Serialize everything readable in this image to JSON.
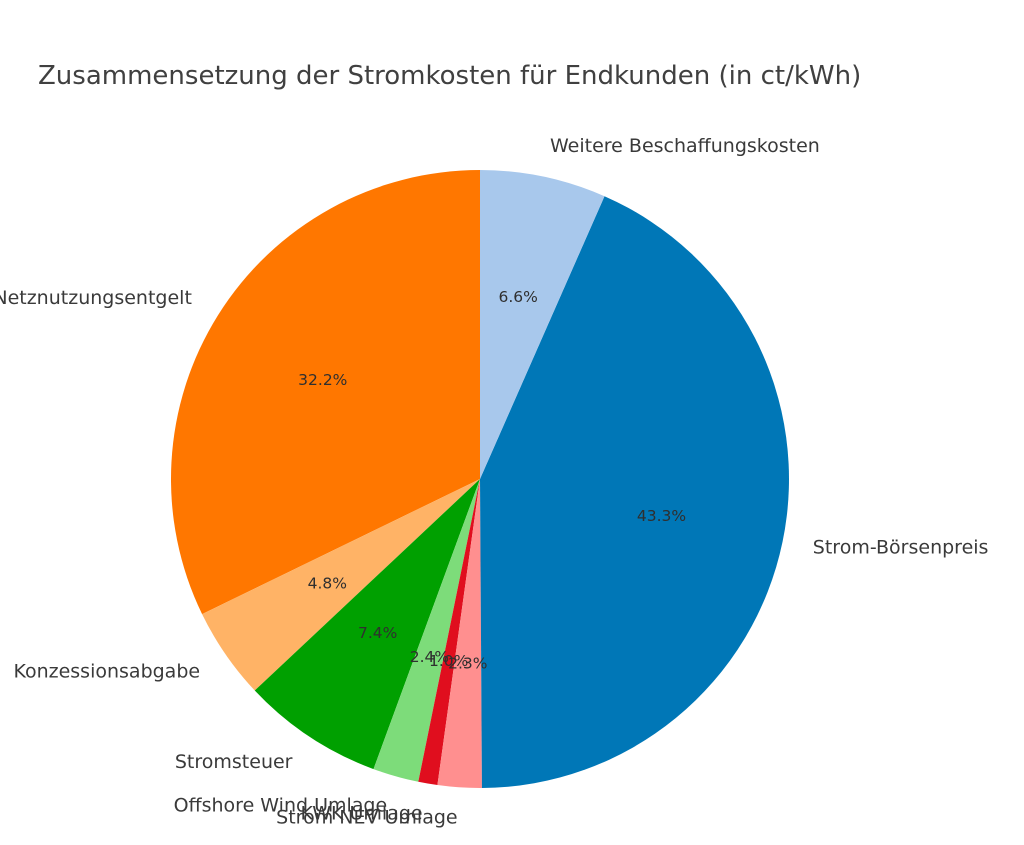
{
  "chart_data": {
    "type": "pie",
    "title": "Zusammensetzung der Stromkosten für Endkunden (in ct/kWh)",
    "start_angle_deg": 90,
    "direction": "counterclockwise",
    "slices": [
      {
        "label": "Netznutzungsentgelt",
        "value": 32.2,
        "pct_label": "32.2%",
        "color": "#ff7700"
      },
      {
        "label": "Konzessionsabgabe",
        "value": 4.8,
        "pct_label": "4.8%",
        "color": "#ffb366"
      },
      {
        "label": "Stromsteuer",
        "value": 7.4,
        "pct_label": "7.4%",
        "color": "#00a000"
      },
      {
        "label": "Offshore Wind Umlage",
        "value": 2.4,
        "pct_label": "2.4%",
        "color": "#7ddc7a"
      },
      {
        "label": "KWK Umlage",
        "value": 1.0,
        "pct_label": "1.0%",
        "color": "#e00e1e"
      },
      {
        "label": "Strom NEV Umlage",
        "value": 2.3,
        "pct_label": "2.3%",
        "color": "#ff8f8f"
      },
      {
        "label": "Strom-Börsenpreis",
        "value": 43.3,
        "pct_label": "43.3%",
        "color": "#0077b7"
      },
      {
        "label": "Weitere Beschaffungskosten",
        "value": 6.6,
        "pct_label": "6.6%",
        "color": "#a8c8ec"
      }
    ]
  }
}
